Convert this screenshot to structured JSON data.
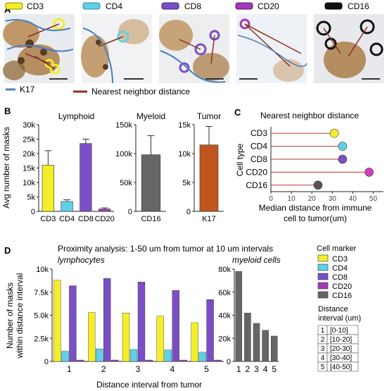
{
  "panels": {
    "a": "A",
    "b": "B",
    "c": "C",
    "d": "D"
  },
  "panel_a": {
    "legend_top": [
      {
        "label": "CD3",
        "color": "#f4ee2a"
      },
      {
        "label": "CD4",
        "color": "#5fd0e8"
      },
      {
        "label": "CD8",
        "color": "#7a4fc6"
      },
      {
        "label": "CD20",
        "color": "#a239b8"
      },
      {
        "label": "CD16",
        "color": "#111111"
      }
    ],
    "legend_bottom": [
      {
        "label": "K17",
        "color": "#4a7fc0"
      },
      {
        "label": "Nearest neighbor distance",
        "color": "#8b2f1e"
      }
    ]
  },
  "panel_b": {
    "ylabel": "Avg number of masks",
    "groups": [
      {
        "title": "Lymphoid",
        "ylim": [
          0,
          30000
        ],
        "yticks": [
          "0",
          "5k",
          "10k",
          "15k",
          "20k",
          "25k",
          "30k"
        ]
      },
      {
        "title": "Myeloid",
        "ylim": [
          0,
          150000
        ],
        "yticks": [
          "0",
          "50k",
          "100k",
          "150k"
        ]
      },
      {
        "title": "Tumor",
        "ylim": [
          0,
          15000
        ],
        "yticks": [
          "0",
          "5k",
          "10k",
          "15k"
        ]
      }
    ]
  },
  "panel_c": {
    "title": "Nearest neighbor distance",
    "ylabel": "Cell type",
    "xlabel_line1": "Median distance from immune",
    "xlabel_line2": "cell to tumor(um)",
    "xticks": [
      "0",
      "10",
      "20",
      "30",
      "40",
      "50"
    ]
  },
  "panel_d": {
    "title": "Proximity analysis: 1-50 um from tumor at 10 um intervals",
    "sub_left": "lymphocytes",
    "sub_right": "myeloid cells",
    "ylabel_line1": "Number of masks",
    "ylabel_line2": "within distance interval",
    "xlabel": "Distance interval from tumor",
    "left_yticks": [
      "0",
      "2.5k",
      "5.0k",
      "7.5k",
      "10k"
    ],
    "right_yticks": [
      "0",
      "20k",
      "40k",
      "60k",
      "80k"
    ],
    "legend_title": "Cell marker",
    "legend": [
      {
        "label": "CD3",
        "color": "#f4ee2a"
      },
      {
        "label": "CD4",
        "color": "#5fd0e8"
      },
      {
        "label": "CD8",
        "color": "#7a4fc6"
      },
      {
        "label": "CD20",
        "color": "#a239b8"
      },
      {
        "label": "CD16",
        "color": "#666666"
      }
    ],
    "interval_title_line1": "Distance",
    "interval_title_line2": "interval (um)",
    "intervals": [
      {
        "n": "1",
        "range": "[0-10]"
      },
      {
        "n": "2",
        "range": "[10-20]"
      },
      {
        "n": "3",
        "range": "[20-30]"
      },
      {
        "n": "4",
        "range": "[30-40]"
      },
      {
        "n": "5",
        "range": "[40-50]"
      }
    ]
  },
  "chart_data": [
    {
      "type": "bar",
      "title": "Lymphoid",
      "ylabel": "Avg number of masks",
      "categories": [
        "CD3",
        "CD4",
        "CD8",
        "CD20"
      ],
      "values": [
        16000,
        3400,
        23500,
        800
      ],
      "errors": [
        5000,
        600,
        1500,
        400
      ],
      "colors": [
        "#f4ee2a",
        "#5fd0e8",
        "#7a4fc6",
        "#a239b8"
      ],
      "ylim": [
        0,
        30000
      ]
    },
    {
      "type": "bar",
      "title": "Myeloid",
      "categories": [
        "CD16"
      ],
      "values": [
        98000
      ],
      "errors": [
        33000
      ],
      "colors": [
        "#666666"
      ],
      "ylim": [
        0,
        150000
      ]
    },
    {
      "type": "bar",
      "title": "Tumor",
      "categories": [
        "K17"
      ],
      "values": [
        11500
      ],
      "errors": [
        3200
      ],
      "colors": [
        "#c0561e"
      ],
      "ylim": [
        0,
        15000
      ]
    },
    {
      "type": "scatter",
      "title": "Nearest neighbor distance",
      "xlabel": "Median distance from immune cell to tumor(um)",
      "ylabel": "Cell type",
      "categories": [
        "CD3",
        "CD4",
        "CD8",
        "CD20",
        "CD16"
      ],
      "values": [
        31,
        35,
        35,
        48,
        23
      ],
      "colors": [
        "#f4ee2a",
        "#5fd0e8",
        "#7a4fc6",
        "#d63bbd",
        "#555555"
      ],
      "xlim": [
        0,
        55
      ]
    },
    {
      "type": "bar",
      "title": "lymphocytes",
      "xlabel": "Distance interval from tumor",
      "categories": [
        "1",
        "2",
        "3",
        "4",
        "5"
      ],
      "series": [
        {
          "name": "CD3",
          "color": "#f4ee2a",
          "values": [
            8800,
            5300,
            5250,
            4900,
            4200
          ]
        },
        {
          "name": "CD4",
          "color": "#5fd0e8",
          "values": [
            1100,
            1350,
            1300,
            1250,
            1000
          ]
        },
        {
          "name": "CD8",
          "color": "#7a4fc6",
          "values": [
            8200,
            9000,
            8600,
            7700,
            6700
          ]
        },
        {
          "name": "CD20",
          "color": "#a239b8",
          "values": [
            150,
            150,
            150,
            150,
            150
          ]
        }
      ],
      "ylim": [
        0,
        10000
      ]
    },
    {
      "type": "bar",
      "title": "myeloid cells",
      "categories": [
        "1",
        "2",
        "3",
        "4",
        "5"
      ],
      "series": [
        {
          "name": "CD16",
          "color": "#666666",
          "values": [
            78000,
            42000,
            33000,
            27000,
            22000
          ]
        }
      ],
      "ylim": [
        0,
        80000
      ]
    }
  ]
}
